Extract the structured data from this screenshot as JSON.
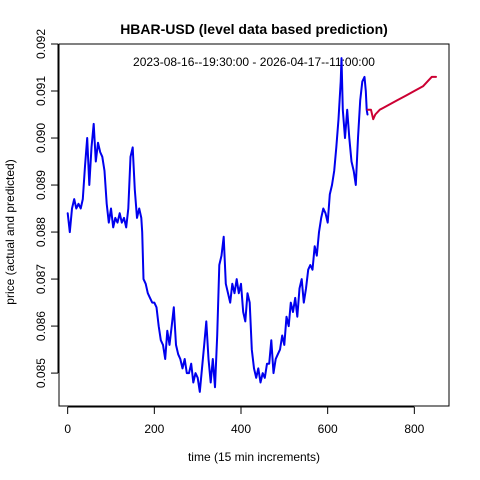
{
  "chart_data": {
    "type": "line",
    "title": "HBAR-USD (level data based prediction)",
    "subtitle": "2023-08-16--19:30:00  -  2026-04-17--11:00:00",
    "xlabel": "time (15 min increments)",
    "ylabel": "price (actual and predicted)",
    "xlim": [
      -20,
      880
    ],
    "ylim": [
      0.0843,
      0.092
    ],
    "xticks": [
      0,
      200,
      400,
      600,
      800
    ],
    "yticks": [
      0.085,
      0.086,
      0.087,
      0.088,
      0.089,
      0.09,
      0.091,
      0.092
    ],
    "grid": false,
    "series": [
      {
        "role": "actual",
        "color": "#0000ee",
        "points": [
          [
            0,
            0.0884
          ],
          [
            5,
            0.088
          ],
          [
            10,
            0.0885
          ],
          [
            15,
            0.0887
          ],
          [
            20,
            0.0885
          ],
          [
            25,
            0.0886
          ],
          [
            30,
            0.0885
          ],
          [
            35,
            0.0887
          ],
          [
            40,
            0.0894
          ],
          [
            45,
            0.09
          ],
          [
            50,
            0.089
          ],
          [
            55,
            0.0898
          ],
          [
            60,
            0.0903
          ],
          [
            65,
            0.0895
          ],
          [
            70,
            0.0899
          ],
          [
            75,
            0.0897
          ],
          [
            80,
            0.0896
          ],
          [
            85,
            0.0893
          ],
          [
            90,
            0.0886
          ],
          [
            95,
            0.0882
          ],
          [
            100,
            0.0885
          ],
          [
            105,
            0.0881
          ],
          [
            110,
            0.0883
          ],
          [
            115,
            0.0882
          ],
          [
            120,
            0.0884
          ],
          [
            125,
            0.0882
          ],
          [
            130,
            0.0883
          ],
          [
            135,
            0.0881
          ],
          [
            140,
            0.0885
          ],
          [
            145,
            0.0896
          ],
          [
            150,
            0.0898
          ],
          [
            155,
            0.0889
          ],
          [
            160,
            0.0883
          ],
          [
            165,
            0.0885
          ],
          [
            170,
            0.0883
          ],
          [
            172,
            0.088
          ],
          [
            175,
            0.087
          ],
          [
            180,
            0.0869
          ],
          [
            185,
            0.0867
          ],
          [
            190,
            0.0866
          ],
          [
            195,
            0.0865
          ],
          [
            200,
            0.0865
          ],
          [
            205,
            0.0864
          ],
          [
            210,
            0.086
          ],
          [
            215,
            0.0857
          ],
          [
            220,
            0.0856
          ],
          [
            225,
            0.0853
          ],
          [
            230,
            0.0859
          ],
          [
            235,
            0.0856
          ],
          [
            240,
            0.086
          ],
          [
            245,
            0.0864
          ],
          [
            250,
            0.0856
          ],
          [
            255,
            0.0854
          ],
          [
            260,
            0.0853
          ],
          [
            265,
            0.0851
          ],
          [
            270,
            0.0853
          ],
          [
            275,
            0.085
          ],
          [
            280,
            0.085
          ],
          [
            285,
            0.0852
          ],
          [
            290,
            0.0848
          ],
          [
            295,
            0.085
          ],
          [
            300,
            0.0849
          ],
          [
            305,
            0.0846
          ],
          [
            310,
            0.0851
          ],
          [
            315,
            0.0856
          ],
          [
            320,
            0.0861
          ],
          [
            325,
            0.0853
          ],
          [
            330,
            0.0848
          ],
          [
            335,
            0.0853
          ],
          [
            340,
            0.0847
          ],
          [
            345,
            0.0858
          ],
          [
            350,
            0.0873
          ],
          [
            355,
            0.0875
          ],
          [
            360,
            0.0879
          ],
          [
            365,
            0.0869
          ],
          [
            370,
            0.0867
          ],
          [
            375,
            0.0865
          ],
          [
            380,
            0.0869
          ],
          [
            385,
            0.0867
          ],
          [
            390,
            0.087
          ],
          [
            395,
            0.0867
          ],
          [
            400,
            0.0869
          ],
          [
            405,
            0.0863
          ],
          [
            410,
            0.0861
          ],
          [
            415,
            0.0867
          ],
          [
            420,
            0.0865
          ],
          [
            425,
            0.0855
          ],
          [
            430,
            0.0851
          ],
          [
            435,
            0.0849
          ],
          [
            440,
            0.0851
          ],
          [
            445,
            0.0848
          ],
          [
            450,
            0.085
          ],
          [
            455,
            0.0849
          ],
          [
            460,
            0.0852
          ],
          [
            465,
            0.0852
          ],
          [
            470,
            0.0857
          ],
          [
            475,
            0.085
          ],
          [
            480,
            0.0853
          ],
          [
            485,
            0.0854
          ],
          [
            490,
            0.0855
          ],
          [
            495,
            0.0858
          ],
          [
            500,
            0.0856
          ],
          [
            505,
            0.0862
          ],
          [
            510,
            0.086
          ],
          [
            515,
            0.0865
          ],
          [
            520,
            0.0863
          ],
          [
            525,
            0.0866
          ],
          [
            530,
            0.0862
          ],
          [
            535,
            0.0868
          ],
          [
            540,
            0.087
          ],
          [
            545,
            0.0865
          ],
          [
            550,
            0.0868
          ],
          [
            555,
            0.0872
          ],
          [
            560,
            0.0873
          ],
          [
            565,
            0.0872
          ],
          [
            570,
            0.0877
          ],
          [
            575,
            0.0875
          ],
          [
            580,
            0.088
          ],
          [
            585,
            0.0883
          ],
          [
            590,
            0.0885
          ],
          [
            595,
            0.0884
          ],
          [
            600,
            0.0882
          ],
          [
            605,
            0.0888
          ],
          [
            610,
            0.089
          ],
          [
            615,
            0.0893
          ],
          [
            620,
            0.0898
          ],
          [
            625,
            0.0904
          ],
          [
            630,
            0.0912
          ],
          [
            632,
            0.0917
          ],
          [
            635,
            0.0906
          ],
          [
            640,
            0.09
          ],
          [
            645,
            0.0906
          ],
          [
            650,
            0.09
          ],
          [
            655,
            0.0895
          ],
          [
            660,
            0.0893
          ],
          [
            665,
            0.089
          ],
          [
            670,
            0.09
          ],
          [
            675,
            0.0908
          ],
          [
            680,
            0.0912
          ],
          [
            685,
            0.0913
          ],
          [
            688,
            0.091
          ],
          [
            690,
            0.0906
          ],
          [
            692,
            0.0905
          ]
        ]
      },
      {
        "role": "predicted",
        "color": "#cc0033",
        "points": [
          [
            692,
            0.0906
          ],
          [
            700,
            0.0906
          ],
          [
            705,
            0.0904
          ],
          [
            710,
            0.0905
          ],
          [
            720,
            0.0906
          ],
          [
            740,
            0.0907
          ],
          [
            760,
            0.0908
          ],
          [
            780,
            0.0909
          ],
          [
            800,
            0.091
          ],
          [
            820,
            0.0911
          ],
          [
            840,
            0.0913
          ],
          [
            850,
            0.0913
          ]
        ]
      }
    ]
  }
}
